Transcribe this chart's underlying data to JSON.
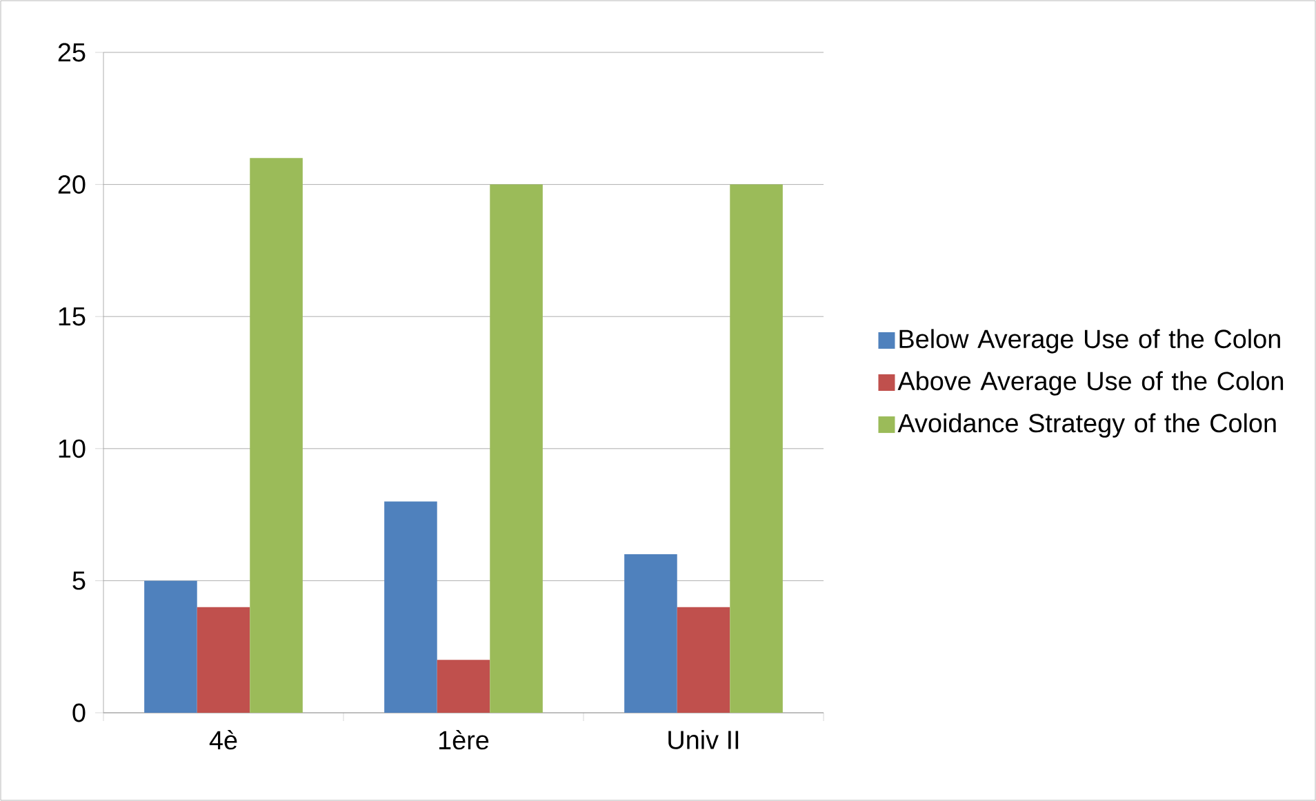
{
  "chart_data": {
    "type": "bar",
    "categories": [
      "4è",
      "1ère",
      "Univ II"
    ],
    "series": [
      {
        "name": "Below Average Use of the Colon",
        "color": "#4f81bd",
        "values": [
          5,
          8,
          6
        ]
      },
      {
        "name": "Above Average Use of the Colon",
        "color": "#c0504d",
        "values": [
          4,
          2,
          4
        ]
      },
      {
        "name": "Avoidance Strategy of the Colon",
        "color": "#9bbb59",
        "values": [
          21,
          20,
          20
        ]
      }
    ],
    "ylim": [
      0,
      25
    ],
    "yticks": [
      0,
      5,
      10,
      15,
      20,
      25
    ],
    "grid": "y",
    "legend": "right"
  }
}
